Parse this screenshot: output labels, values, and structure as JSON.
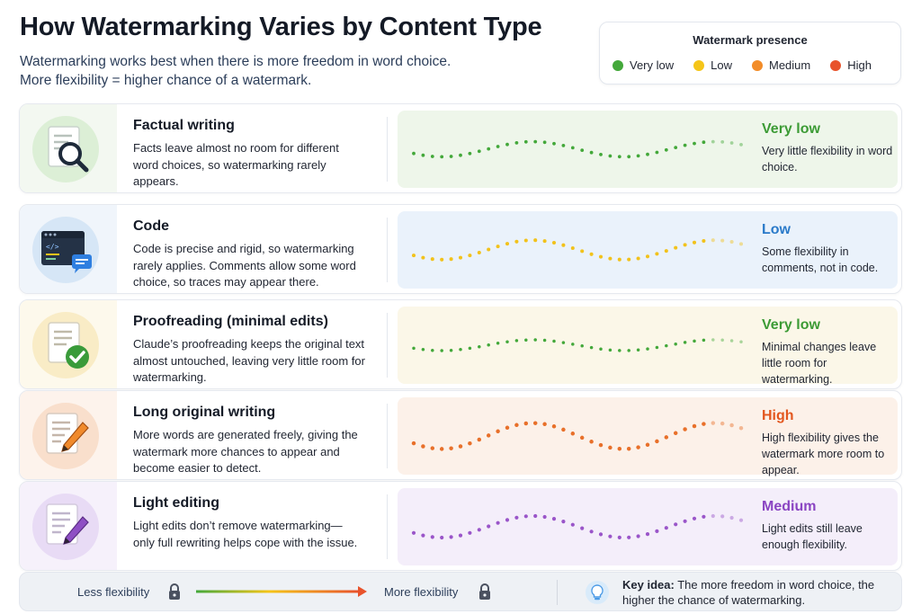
{
  "header": {
    "title": "How Watermarking Varies by Content Type",
    "subtitle_line1": "Watermarking works best when there is more freedom in word choice.",
    "subtitle_line2": "More flexibility = higher chance of a watermark."
  },
  "legend": {
    "title": "Watermark presence",
    "items": [
      {
        "label": "Very low",
        "color": "#43a83a"
      },
      {
        "label": "Low",
        "color": "#f5c518"
      },
      {
        "label": "Medium",
        "color": "#f28c28"
      },
      {
        "label": "High",
        "color": "#e8532c"
      }
    ]
  },
  "rows": [
    {
      "title": "Factual writing",
      "desc": "Facts leave almost no room for different word choices, so watermarking rarely appears.",
      "level": "Very low",
      "level_desc": "Very little flexibility in word choice.",
      "icon": "document-magnifier-icon",
      "color": "#43a83a",
      "wave_amplitude": 0.35
    },
    {
      "title": "Code",
      "desc": "Code is precise and rigid, so watermarking rarely applies. Comments allow some word choice, so traces may appear there.",
      "level": "Low",
      "level_desc": "Some flexibility in comments, not in code.",
      "icon": "code-editor-icon",
      "color": "#f2c21b",
      "wave_amplitude": 0.45
    },
    {
      "title": "Proofreading (minimal edits)",
      "desc": "Claude’s proofreading keeps the original text almost untouched, leaving very little room for watermarking.",
      "level": "Very low",
      "level_desc": "Minimal changes leave little room for watermarking.",
      "icon": "document-check-icon",
      "color": "#43a83a",
      "wave_amplitude": 0.25
    },
    {
      "title": "Long original writing",
      "desc": "More words are generated freely, giving the watermark more chances to appear and become easier to detect.",
      "level": "High",
      "level_desc": "High flexibility gives the watermark more room to appear.",
      "icon": "document-pencil-icon",
      "color": "#e8702a",
      "wave_amplitude": 0.6
    },
    {
      "title": "Light editing",
      "desc": "Light edits don’t remove watermarking— only full rewriting helps cope with the issue.",
      "level": "Medium",
      "level_desc": "Light edits still leave enough flexibility.",
      "icon": "document-edit-icon",
      "color": "#9a55c9",
      "wave_amplitude": 0.5
    }
  ],
  "footer": {
    "less_label": "Less flexibility",
    "more_label": "More flexibility",
    "key_idea_label": "Key idea:",
    "key_idea_text": "The more freedom in word choice, the higher the chance of watermarking."
  }
}
